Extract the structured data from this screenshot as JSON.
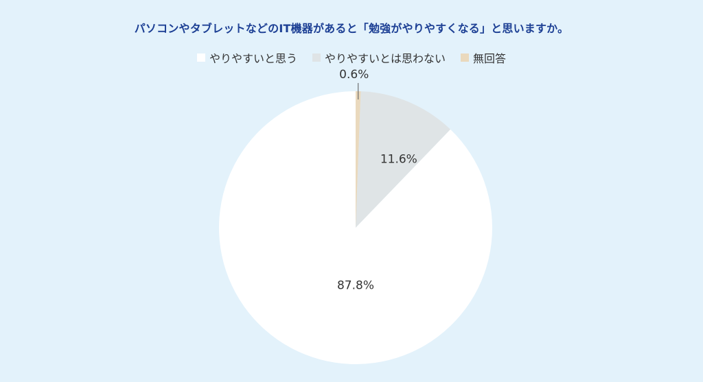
{
  "chart_data": {
    "type": "pie",
    "title": "パソコンやタブレットなどのIT機器があると「勉強がやりやすくなる」と思いますか。",
    "legend_position": "top",
    "slices": [
      {
        "name": "やりやすいと思う",
        "value": 87.8,
        "label": "87.8%",
        "color": "#ffffff"
      },
      {
        "name": "やりやすいとは思わない",
        "value": 11.6,
        "label": "11.6%",
        "color": "#dfe4e6"
      },
      {
        "name": "無回答",
        "value": 0.6,
        "label": "0.6%",
        "color": "#ead9bd"
      }
    ]
  }
}
